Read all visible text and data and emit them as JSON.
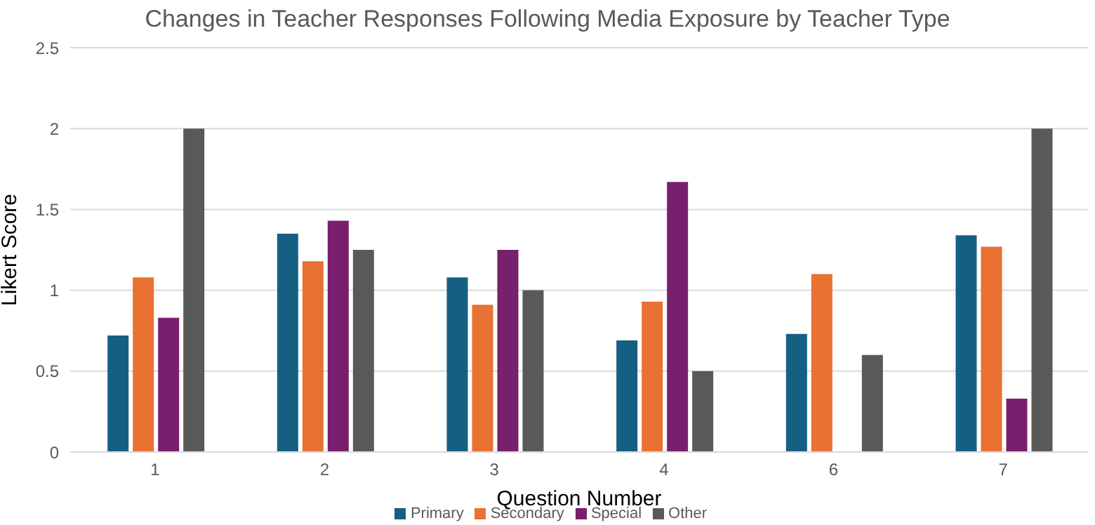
{
  "chart_data": {
    "type": "bar",
    "title": "Changes in Teacher Responses Following Media Exposure by Teacher Type",
    "xlabel": "Question Number",
    "ylabel": "Likert Score",
    "categories": [
      "1",
      "2",
      "3",
      "4",
      "6",
      "7"
    ],
    "series": [
      {
        "name": "Primary",
        "color": "#156082",
        "values": [
          0.72,
          1.35,
          1.08,
          0.69,
          0.73,
          1.34
        ]
      },
      {
        "name": "Secondary",
        "color": "#e97132",
        "values": [
          1.08,
          1.18,
          0.91,
          0.93,
          1.1,
          1.27
        ]
      },
      {
        "name": "Special",
        "color": "#78206e",
        "values": [
          0.83,
          1.43,
          1.25,
          1.67,
          null,
          0.33
        ]
      },
      {
        "name": "Other",
        "color": "#595959",
        "values": [
          2,
          1.25,
          1,
          0.5,
          0.6,
          2
        ]
      }
    ],
    "ylim": [
      0,
      2.5
    ],
    "yticks": [
      0,
      0.5,
      1,
      1.5,
      2,
      2.5
    ],
    "grid": "y",
    "legend": "bottom"
  }
}
